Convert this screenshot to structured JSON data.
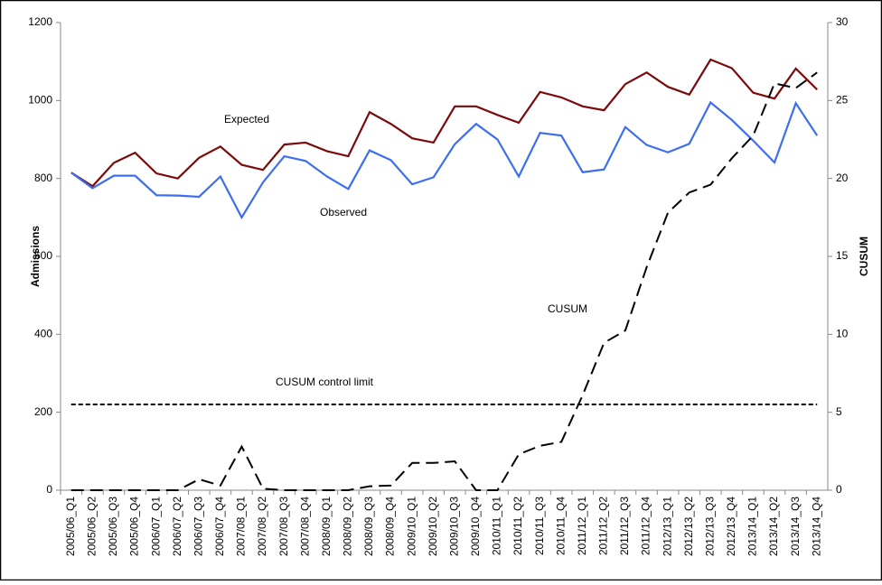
{
  "chart_data": {
    "type": "line",
    "categories": [
      "2005/06_Q1",
      "2005/06_Q2",
      "2005/06_Q3",
      "2005/06_Q4",
      "2006/07_Q1",
      "2006/07_Q2",
      "2006/07_Q3",
      "2006/07_Q4",
      "2007/08_Q1",
      "2007/08_Q2",
      "2007/08_Q3",
      "2007/08_Q4",
      "2008/09_Q1",
      "2008/09_Q2",
      "2008/09_Q3",
      "2008/09_Q4",
      "2009/10_Q1",
      "2009/10_Q2",
      "2009/10_Q3",
      "2009/10_Q4",
      "2010/11_Q1",
      "2010/11_Q2",
      "2010/11_Q3",
      "2010/11_Q4",
      "2011/12_Q1",
      "2011/12_Q2",
      "2011/12_Q3",
      "2011/12_Q4",
      "2012/13_Q1",
      "2012/13_Q2",
      "2012/13_Q3",
      "2012/13_Q4",
      "2013/14_Q1",
      "2013/14_Q2",
      "2013/14_Q3",
      "2013/14_Q4"
    ],
    "series": [
      {
        "name": "Expected",
        "color": "#7b0a0a",
        "values": [
          815,
          780,
          840,
          866,
          813,
          800,
          853,
          882,
          835,
          822,
          887,
          892,
          870,
          857,
          970,
          940,
          903,
          892,
          985,
          985,
          963,
          943,
          1022,
          1008,
          985,
          975,
          1042,
          1072,
          1035,
          1015,
          1105,
          1083,
          1020,
          1005,
          1082,
          1028
        ]
      },
      {
        "name": "Observed",
        "color": "#3d6ef0",
        "values": [
          815,
          775,
          807,
          807,
          757,
          756,
          753,
          805,
          700,
          790,
          857,
          845,
          805,
          773,
          872,
          847,
          785,
          803,
          888,
          940,
          900,
          805,
          917,
          910,
          816,
          823,
          932,
          886,
          867,
          889,
          995,
          950,
          897,
          841,
          993,
          910
        ]
      },
      {
        "name": "CUSUM",
        "color": "#000000",
        "axis": "y2",
        "dash": "14 7",
        "values": [
          0,
          0,
          0,
          0,
          0,
          0,
          0.7,
          0.3,
          2.8,
          0.1,
          0,
          0,
          0,
          0,
          0.25,
          0.3,
          1.75,
          1.75,
          1.85,
          0,
          0,
          2.3,
          2.85,
          3.1,
          6.1,
          9.45,
          10.25,
          14.3,
          17.8,
          19.1,
          19.6,
          21.3,
          22.75,
          26.1,
          25.8,
          26.8
        ]
      },
      {
        "name": "CUSUM control limit",
        "color": "#000000",
        "axis": "y2",
        "dash": "5 3",
        "values": [
          5.5,
          5.5,
          5.5,
          5.5,
          5.5,
          5.5,
          5.5,
          5.5,
          5.5,
          5.5,
          5.5,
          5.5,
          5.5,
          5.5,
          5.5,
          5.5,
          5.5,
          5.5,
          5.5,
          5.5,
          5.5,
          5.5,
          5.5,
          5.5,
          5.5,
          5.5,
          5.5,
          5.5,
          5.5,
          5.5,
          5.5,
          5.5,
          5.5,
          5.5,
          5.5,
          5.5
        ]
      }
    ],
    "ylabel": "Admissions",
    "y2label": "CUSUM",
    "ylim": [
      0,
      1200
    ],
    "yticks": [
      0,
      200,
      400,
      600,
      800,
      1000,
      1200
    ],
    "y2lim": [
      0,
      30
    ],
    "y2ticks": [
      0,
      5,
      10,
      15,
      20,
      25,
      30
    ]
  }
}
